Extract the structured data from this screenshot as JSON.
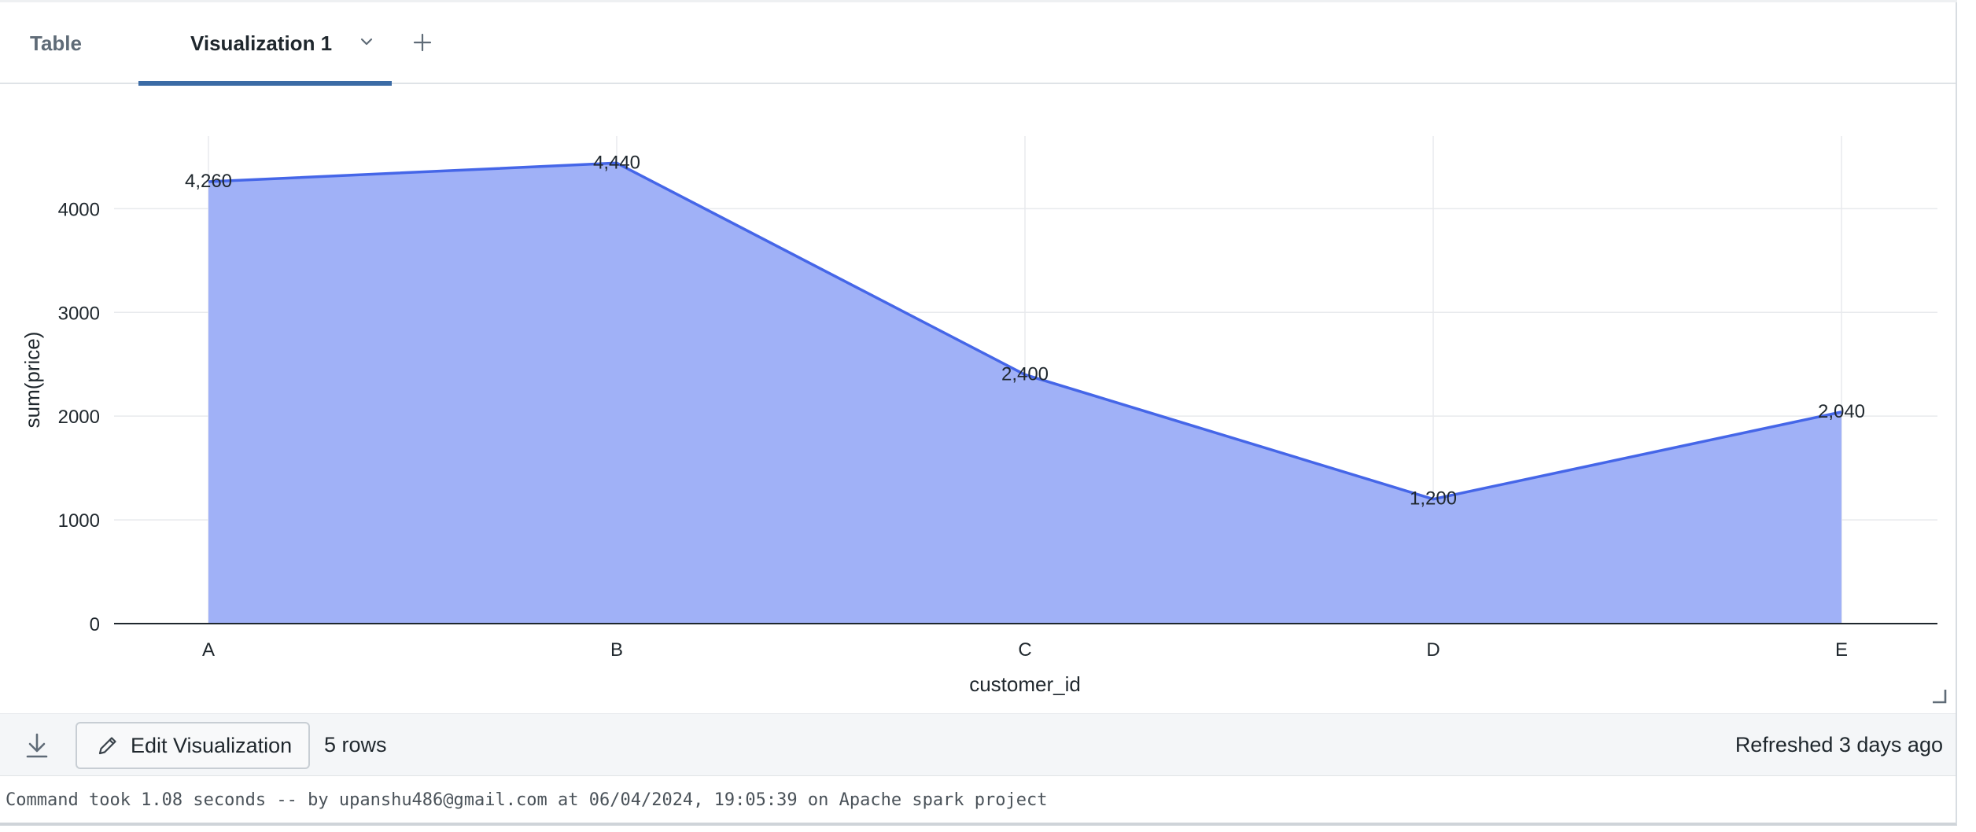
{
  "tabs": {
    "table_label": "Table",
    "viz_label": "Visualization 1"
  },
  "icons": {
    "tab_dropdown": "chevron-down-icon",
    "add_tab": "plus-icon",
    "download": "download-icon",
    "edit": "pencil-icon",
    "resize": "resize-corner-icon"
  },
  "chart_data": {
    "type": "area",
    "categories": [
      "A",
      "B",
      "C",
      "D",
      "E"
    ],
    "values": [
      4260,
      4440,
      2400,
      1200,
      2040
    ],
    "data_labels": [
      "4,260",
      "4,440",
      "2,400",
      "1,200",
      "2,040"
    ],
    "xlabel": "customer_id",
    "ylabel": "sum(price)",
    "ylim": [
      0,
      4700
    ],
    "yticks": [
      0,
      1000,
      2000,
      3000,
      4000
    ],
    "grid": true,
    "legend": "none",
    "line_color": "#4566e8",
    "fill_color": "#a0b1f7"
  },
  "footer": {
    "edit_label": "Edit Visualization",
    "rows_label": "5 rows",
    "refreshed_label": "Refreshed 3 days ago"
  },
  "command_line": "Command took 1.08 seconds -- by upanshu486@gmail.com at 06/04/2024, 19:05:39 on Apache spark project"
}
